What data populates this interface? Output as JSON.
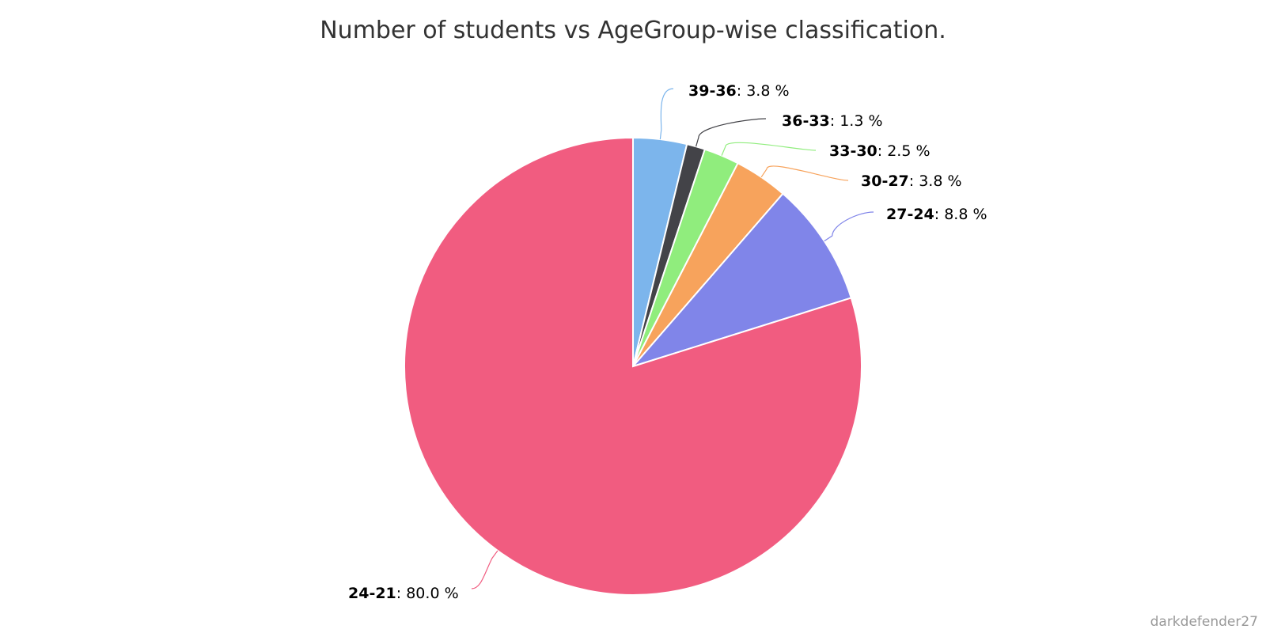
{
  "chart_data": {
    "type": "pie",
    "title": "Number of students vs AgeGroup-wise classification.",
    "start_angle_deg": 0,
    "direction": "clockwise",
    "slices": [
      {
        "label": "39-36",
        "value": 3.8,
        "display": "3.8 %",
        "color": "#7cb5ec"
      },
      {
        "label": "36-33",
        "value": 1.3,
        "display": "1.3 %",
        "color": "#434348"
      },
      {
        "label": "33-30",
        "value": 2.5,
        "display": "2.5 %",
        "color": "#90ed7d"
      },
      {
        "label": "30-27",
        "value": 3.8,
        "display": "3.8 %",
        "color": "#f7a35c"
      },
      {
        "label": "27-24",
        "value": 8.8,
        "display": "8.8 %",
        "color": "#8085e9"
      },
      {
        "label": "24-21",
        "value": 80.0,
        "display": "80.0 %",
        "color": "#f15c80"
      }
    ]
  },
  "credit": "darkdefender27"
}
